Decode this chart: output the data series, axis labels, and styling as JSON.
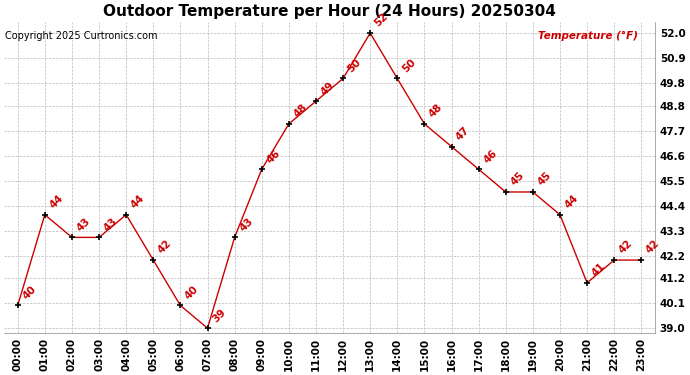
{
  "title": "Outdoor Temperature per Hour (24 Hours) 20250304",
  "copyright": "Copyright 2025 Curtronics.com",
  "legend_label": "Temperature (°F)",
  "hours": [
    "00:00",
    "01:00",
    "02:00",
    "03:00",
    "04:00",
    "05:00",
    "06:00",
    "07:00",
    "08:00",
    "09:00",
    "10:00",
    "11:00",
    "12:00",
    "13:00",
    "14:00",
    "15:00",
    "16:00",
    "17:00",
    "18:00",
    "19:00",
    "20:00",
    "21:00",
    "22:00",
    "23:00"
  ],
  "temps": [
    40,
    44,
    43,
    43,
    44,
    42,
    40,
    39,
    43,
    46,
    48,
    49,
    50,
    52,
    50,
    48,
    47,
    46,
    45,
    45,
    44,
    41,
    42,
    42
  ],
  "line_color": "#cc0000",
  "marker_color": "#000000",
  "text_color": "#cc0000",
  "grid_color": "#bbbbbb",
  "bg_color": "#ffffff",
  "yticks": [
    39.0,
    40.1,
    41.2,
    42.2,
    43.3,
    44.4,
    45.5,
    46.6,
    47.7,
    48.8,
    49.8,
    50.9,
    52.0
  ],
  "title_fontsize": 11,
  "label_fontsize": 7.5,
  "annotation_fontsize": 7.5,
  "copyright_fontsize": 7,
  "legend_fontsize": 7.5
}
